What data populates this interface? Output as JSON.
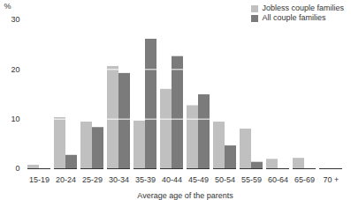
{
  "chart_data": {
    "type": "bar",
    "x_label": "Average age of the parents",
    "y_label": "%",
    "categories": [
      "15-19",
      "20-24",
      "25-29",
      "30-34",
      "35-39",
      "40-44",
      "45-49",
      "50-54",
      "55-59",
      "60-64",
      "65-69",
      "70 +"
    ],
    "series": [
      {
        "name": "Jobless couple families",
        "color": "#c0c0c0",
        "values": [
          0.7,
          10.3,
          9.4,
          20.6,
          9.6,
          16.0,
          12.7,
          9.4,
          8.0,
          1.9,
          2.1,
          0
        ]
      },
      {
        "name": "All couple families",
        "color": "#7b7b7b",
        "values": [
          0,
          2.7,
          8.3,
          19.2,
          26.1,
          22.6,
          14.9,
          4.6,
          1.3,
          0,
          0,
          0
        ]
      }
    ],
    "ylim": [
      0,
      30
    ],
    "yticks": [
      0,
      10,
      20,
      30
    ],
    "grid": true,
    "legend": "top-right"
  }
}
